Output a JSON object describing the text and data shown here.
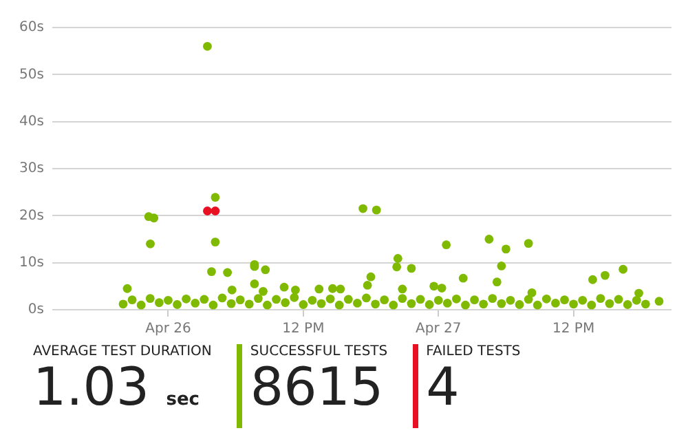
{
  "chart_data": [
    {
      "type": "scatter",
      "grid": "y",
      "marker": "circle",
      "legend": false,
      "xlim": [
        "--04-25T13:42",
        "--04-27T20:42"
      ],
      "xticks": [
        {
          "value": "--04-26",
          "label": "Apr 26"
        },
        {
          "value": "--04-26T12:00",
          "label": "12 PM"
        },
        {
          "value": "--04-27",
          "label": "Apr 27"
        },
        {
          "value": "--04-27T12:00",
          "label": "12 PM"
        }
      ],
      "ylim": [
        0,
        60
      ],
      "yticks": [
        {
          "value": 0,
          "label": "0s"
        },
        {
          "value": 10,
          "label": "10s"
        },
        {
          "value": 20,
          "label": "20s"
        },
        {
          "value": 30,
          "label": "30s"
        },
        {
          "value": 40,
          "label": "40s"
        },
        {
          "value": 50,
          "label": "50s"
        },
        {
          "value": 60,
          "label": "60s"
        }
      ],
      "series": [
        {
          "color": "#7fba00",
          "x": [
            "--04-25T20:00",
            "--04-25T20:48",
            "--04-25T21:36",
            "--04-25T22:24",
            "--04-25T23:12",
            "--04-26T00:00",
            "--04-26T00:48",
            "--04-26T01:36",
            "--04-26T02:24",
            "--04-26T03:12",
            "--04-26T04:00",
            "--04-26T04:48",
            "--04-26T05:36",
            "--04-26T06:24",
            "--04-26T07:12",
            "--04-26T08:00",
            "--04-26T08:48",
            "--04-26T09:36",
            "--04-26T10:24",
            "--04-26T11:12",
            "--04-26T12:00",
            "--04-26T12:48",
            "--04-26T13:36",
            "--04-26T14:24",
            "--04-26T15:12",
            "--04-26T16:00",
            "--04-26T16:48",
            "--04-26T17:36",
            "--04-26T18:24",
            "--04-26T19:12",
            "--04-26T20:00",
            "--04-26T20:48",
            "--04-26T21:36",
            "--04-26T22:24",
            "--04-26T23:12",
            "--04-27T00:00",
            "--04-27T00:48",
            "--04-27T01:36",
            "--04-27T02:24",
            "--04-27T03:12",
            "--04-27T04:00",
            "--04-27T04:48",
            "--04-27T05:36",
            "--04-27T06:24",
            "--04-27T07:12",
            "--04-27T08:00",
            "--04-27T08:48",
            "--04-27T09:36",
            "--04-27T10:24",
            "--04-27T11:12",
            "--04-27T12:00",
            "--04-27T12:48",
            "--04-27T13:36",
            "--04-27T14:24",
            "--04-27T15:12",
            "--04-27T16:00",
            "--04-27T16:48",
            "--04-27T17:36",
            "--04-27T18:24",
            "--04-27T19:36",
            "--04-25T20:22",
            "--04-25T22:16",
            "--04-25T22:44",
            "--04-25T22:25",
            "--04-26T03:29",
            "--04-26T04:11",
            "--04-26T04:11",
            "--04-26T03:51",
            "--04-26T05:16",
            "--04-26T05:40",
            "--04-26T07:40",
            "--04-26T07:40",
            "--04-26T08:38",
            "--04-26T07:40",
            "--04-26T08:26",
            "--04-26T10:18",
            "--04-26T11:18",
            "--04-26T13:24",
            "--04-26T14:36",
            "--04-26T15:18",
            "--04-26T17:18",
            "--04-26T18:30",
            "--04-26T18:00",
            "--04-26T17:42",
            "--04-26T20:24",
            "--04-26T20:18",
            "--04-26T21:36",
            "--04-27T00:42",
            "--04-27T02:12",
            "--04-26T23:36",
            "--04-27T00:18",
            "--04-27T04:30",
            "--04-27T06:00",
            "--04-27T05:36",
            "--04-27T05:12",
            "--04-27T08:00",
            "--04-27T08:18",
            "--04-27T13:42",
            "--04-27T14:48",
            "--04-27T16:24",
            "--04-27T17:48",
            "--04-26T20:48"
          ],
          "values": [
            1.2,
            2.1,
            1.0,
            2.4,
            1.5,
            2.0,
            1.1,
            2.3,
            1.4,
            2.2,
            1.0,
            2.5,
            1.3,
            2.1,
            1.2,
            2.4,
            1.0,
            2.2,
            1.5,
            2.6,
            1.1,
            2.0,
            1.3,
            2.3,
            1.0,
            2.2,
            1.4,
            2.5,
            1.2,
            2.1,
            1.0,
            2.4,
            1.3,
            2.2,
            1.1,
            2.0,
            1.4,
            2.3,
            1.0,
            2.1,
            1.2,
            2.4,
            1.3,
            2.0,
            1.1,
            2.2,
            1.0,
            2.3,
            1.4,
            2.1,
            1.2,
            2.0,
            1.0,
            2.4,
            1.3,
            2.2,
            1.1,
            2.0,
            1.2,
            1.8,
            4.5,
            19.8,
            19.5,
            14.0,
            56.0,
            23.9,
            14.4,
            8.1,
            7.9,
            4.2,
            9.6,
            5.5,
            8.5,
            9.2,
            3.9,
            4.8,
            4.2,
            4.4,
            4.5,
            4.4,
            21.5,
            21.2,
            7.0,
            5.2,
            10.9,
            9.1,
            8.8,
            13.8,
            6.7,
            5.0,
            4.6,
            15.0,
            12.9,
            9.3,
            5.9,
            14.1,
            3.6,
            6.4,
            7.3,
            8.6,
            3.5,
            4.4
          ]
        },
        {
          "color": "#e81123",
          "x": [
            "--04-26T03:29",
            "--04-26T04:11"
          ],
          "values": [
            21.0,
            21.0
          ]
        }
      ]
    },
    {
      "type": "other",
      "annotations": [
        "AVERAGE TEST DURATION",
        "1.03 sec",
        "SUCCESSFUL TESTS",
        "8615",
        "FAILED TESTS",
        "4"
      ]
    }
  ]
}
